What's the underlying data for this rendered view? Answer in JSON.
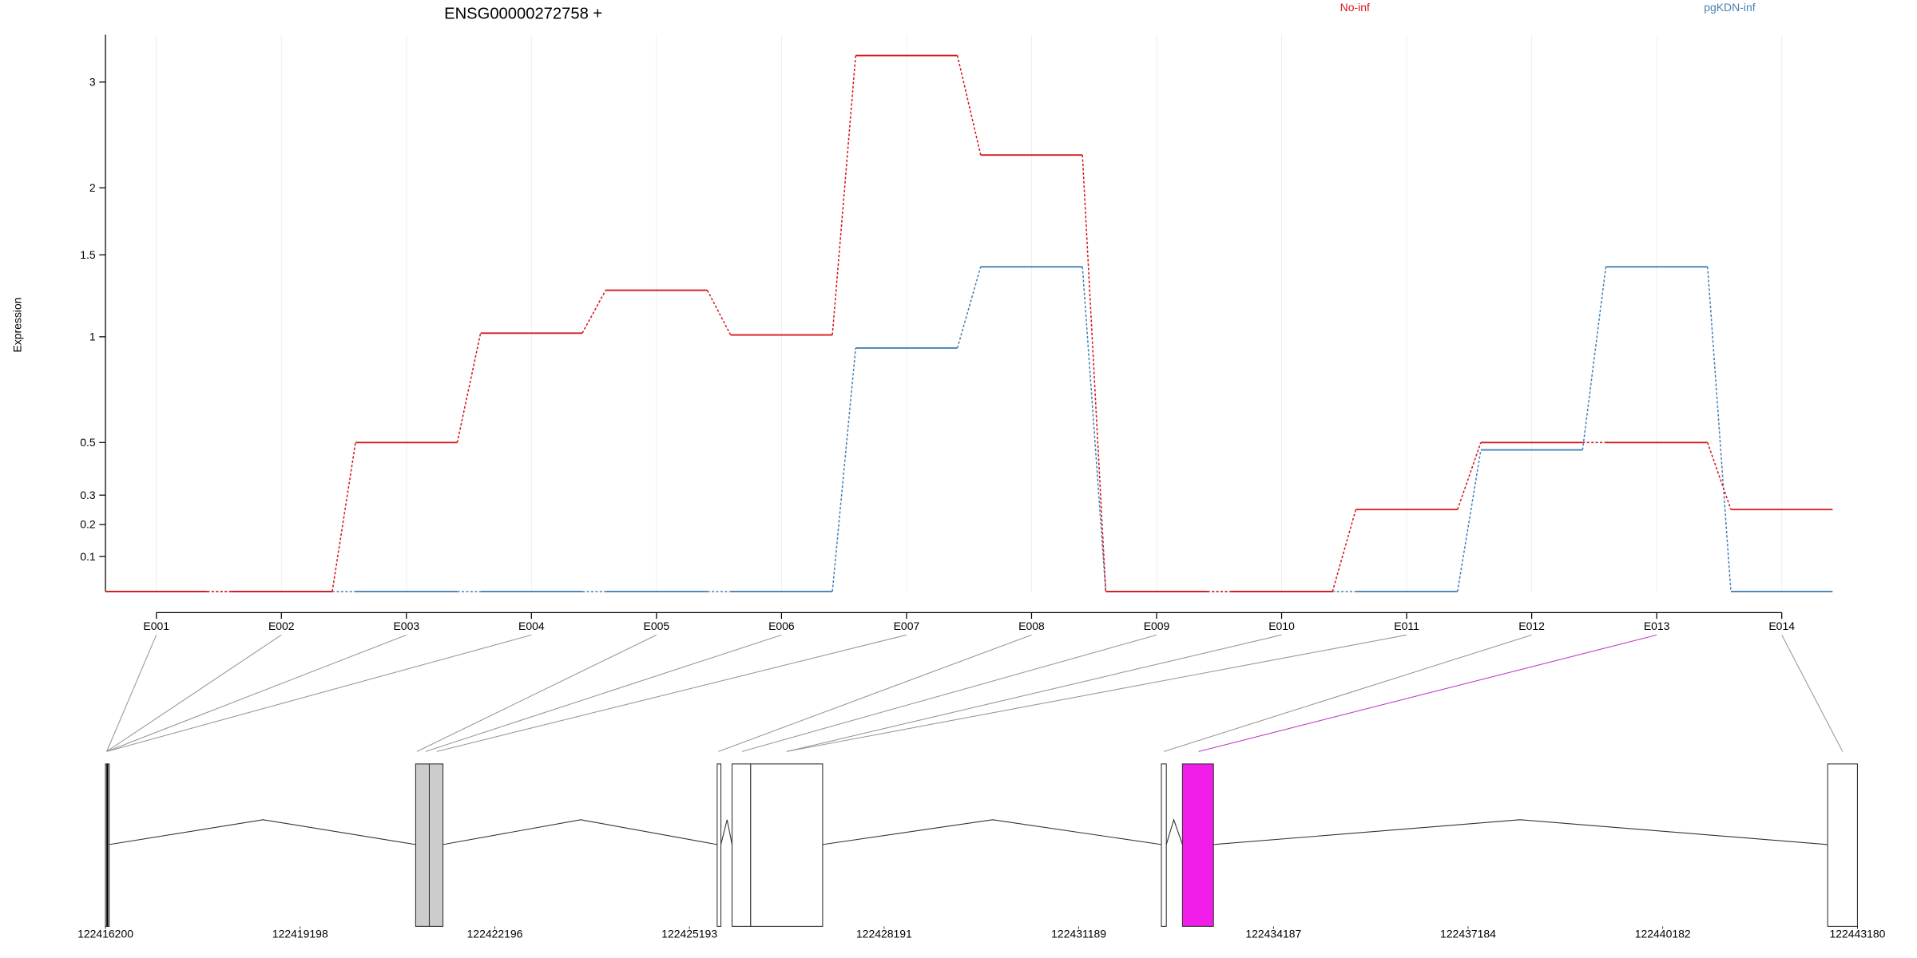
{
  "chart_data": {
    "type": "line",
    "title": "ENSG00000272758 +",
    "y_label": "Expression",
    "categories": [
      "E001",
      "E002",
      "E003",
      "E004",
      "E005",
      "E006",
      "E007",
      "E008",
      "E009",
      "E010",
      "E011",
      "E012",
      "E013",
      "E014"
    ],
    "series": [
      {
        "name": "No-inf",
        "color": "#d7191c",
        "values": [
          0,
          0,
          0.5,
          1.02,
          1.27,
          1.01,
          3.3,
          2.28,
          0,
          0,
          0.25,
          0.5,
          0.5,
          0.25
        ]
      },
      {
        "name": "pgKDN-inf",
        "color": "#4682b4",
        "values": [
          0,
          0,
          0,
          0,
          0,
          0,
          0.94,
          1.42,
          0,
          0,
          0,
          0.47,
          1.42,
          0
        ]
      }
    ],
    "ylim": [
      0,
      3.55
    ],
    "yticks": [
      0.1,
      0.2,
      0.3,
      0.5,
      1,
      1.5,
      2,
      3
    ],
    "yscale": "log1p",
    "grid": true,
    "gene_xlim": [
      122416200,
      122443180
    ],
    "gene_xticks": [
      122416200,
      122419198,
      122422196,
      122425193,
      122428191,
      122431189,
      122434187,
      122437184,
      122440182,
      122443180
    ]
  }
}
